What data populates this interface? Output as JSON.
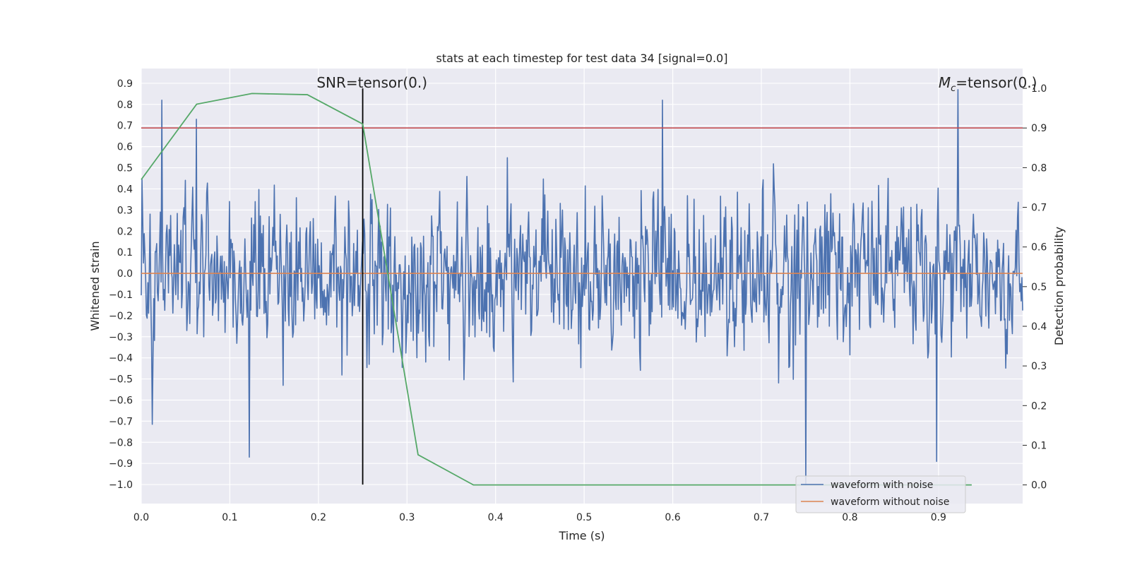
{
  "chart_data": {
    "type": "line",
    "title": "stats at each timestep for test data 34 [signal=0.0]",
    "xlabel": "Time (s)",
    "ylabel": "Whitened strain",
    "y2label": "Detection probability",
    "xlim": [
      0.0,
      0.995
    ],
    "ylim": [
      -1.09,
      0.97
    ],
    "y2lim": [
      -0.047,
      1.05
    ],
    "xticks": [
      "0.0",
      "0.1",
      "0.2",
      "0.3",
      "0.4",
      "0.5",
      "0.6",
      "0.7",
      "0.8",
      "0.9"
    ],
    "yticks": [
      "0.9",
      "0.8",
      "0.7",
      "0.6",
      "0.5",
      "0.4",
      "0.3",
      "0.2",
      "0.1",
      "0.0",
      "−0.1",
      "−0.2",
      "−0.3",
      "−0.4",
      "−0.5",
      "−0.6",
      "−0.7",
      "−0.8",
      "−0.9",
      "−1.0"
    ],
    "y2ticks": [
      "0.0",
      "0.1",
      "0.2",
      "0.3",
      "0.4",
      "0.5",
      "0.6",
      "0.7",
      "0.8",
      "0.9",
      "1.0"
    ],
    "grid": true,
    "series": [
      {
        "name": "waveform with noise",
        "color": "#4c72b0",
        "axis": "left",
        "x_start": 0.0,
        "x_end": 0.995,
        "noise_seed": 34,
        "approx_range": [
          -1.0,
          0.87
        ],
        "notable_peaks": [
          [
            0.023,
            0.82
          ],
          [
            0.062,
            0.73
          ],
          [
            0.588,
            0.82
          ],
          [
            0.922,
            0.87
          ],
          [
            0.75,
            -1.0
          ],
          [
            0.898,
            -0.89
          ],
          [
            0.122,
            -0.87
          ]
        ]
      },
      {
        "name": "waveform without noise",
        "color": "#dd8452",
        "axis": "left",
        "x": [
          0.0,
          0.995
        ],
        "y": [
          0.0,
          0.0
        ]
      },
      {
        "name": "",
        "color": "#55a868",
        "axis": "right",
        "x": [
          0.0,
          0.0625,
          0.125,
          0.1875,
          0.25,
          0.3125,
          0.375,
          0.4375,
          0.5,
          0.5625,
          0.625,
          0.6875,
          0.75,
          0.8125,
          0.875,
          0.9375
        ],
        "y": [
          0.77,
          0.96,
          0.987,
          0.984,
          0.91,
          0.076,
          0.0,
          0.0,
          0.0,
          0.0,
          0.0,
          0.0,
          0.0,
          0.0,
          0.0,
          0.0
        ]
      }
    ],
    "threshold_line": {
      "axis": "right",
      "value": 0.9,
      "color": "#c44e52"
    },
    "vertical_marker": {
      "x": 0.25,
      "y_bottom": -1.0,
      "y2_top": 1.0,
      "color": "#000000"
    },
    "annotations": [
      {
        "text": "SNR=tensor(0.)",
        "x": 0.198
      },
      {
        "prefix": "M",
        "sub": "c",
        "suffix": "=tensor(0.)",
        "x": 0.9
      }
    ],
    "legend": {
      "placement": "lower-right",
      "entries": [
        {
          "label": "waveform with noise",
          "color": "#4c72b0"
        },
        {
          "label": "waveform without noise",
          "color": "#dd8452"
        }
      ]
    }
  }
}
